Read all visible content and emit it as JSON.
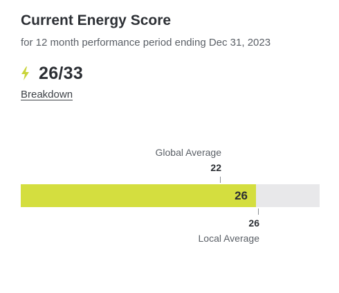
{
  "header": {
    "title": "Current Energy Score",
    "subtitle": "for 12 month performance period ending Dec 31, 2023"
  },
  "score": {
    "icon": "lightning-bolt-icon",
    "value": "26/33",
    "current": 26,
    "max": 33
  },
  "breakdown_link": "Breakdown",
  "chart_data": {
    "type": "bar",
    "value": 26,
    "value_label": "26",
    "max": 33,
    "markers": {
      "global": {
        "label": "Global Average",
        "value": 22,
        "value_label": "22"
      },
      "local": {
        "label": "Local Average",
        "value": 26,
        "value_label": "26"
      }
    }
  },
  "colors": {
    "bar_fill": "#d4de3f",
    "bar_track": "#e8e8ea",
    "bolt": "#c9d43a"
  }
}
